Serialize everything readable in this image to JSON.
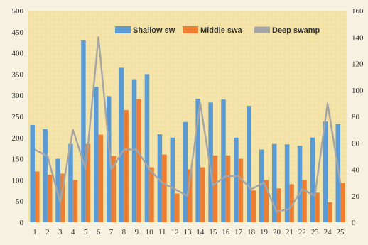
{
  "chart_data": {
    "type": "bar",
    "categories": [
      "1",
      "2",
      "3",
      "4",
      "5",
      "6",
      "7",
      "8",
      "9",
      "10",
      "11",
      "12",
      "13",
      "14",
      "15",
      "16",
      "17",
      "18",
      "19",
      "20",
      "21",
      "22",
      "23",
      "24",
      "25"
    ],
    "series": [
      {
        "name": "Shallow sw",
        "type": "bar",
        "axis": "left",
        "color": "#5b9bd5",
        "values": [
          230,
          220,
          150,
          185,
          430,
          320,
          298,
          365,
          338,
          350,
          208,
          200,
          237,
          292,
          283,
          290,
          200,
          275,
          172,
          185,
          184,
          181,
          200,
          238,
          232
        ]
      },
      {
        "name": "Middle swa",
        "type": "bar",
        "axis": "left",
        "color": "#ed7d31",
        "values": [
          120,
          112,
          115,
          100,
          185,
          207,
          157,
          265,
          292,
          130,
          160,
          68,
          125,
          130,
          158,
          158,
          150,
          75,
          100,
          80,
          90,
          100,
          70,
          47,
          93
        ]
      },
      {
        "name": "Deep swamp",
        "type": "line",
        "axis": "right",
        "color": "#a5a5a5",
        "values": [
          55,
          50,
          15,
          70,
          40,
          140,
          40,
          55,
          55,
          40,
          30,
          25,
          20,
          90,
          28,
          35,
          35,
          25,
          30,
          8,
          10,
          25,
          20,
          90,
          30
        ]
      }
    ],
    "y_left": {
      "min": 0,
      "max": 500,
      "ticks": [
        "0",
        "50",
        "100",
        "150",
        "200",
        "250",
        "300",
        "350",
        "400",
        "450",
        "500"
      ]
    },
    "y_right": {
      "min": 0,
      "max": 160,
      "ticks": [
        "0",
        "20",
        "40",
        "60",
        "80",
        "100",
        "120",
        "140",
        "160"
      ]
    },
    "legend_position": "top-right",
    "grid": false
  }
}
